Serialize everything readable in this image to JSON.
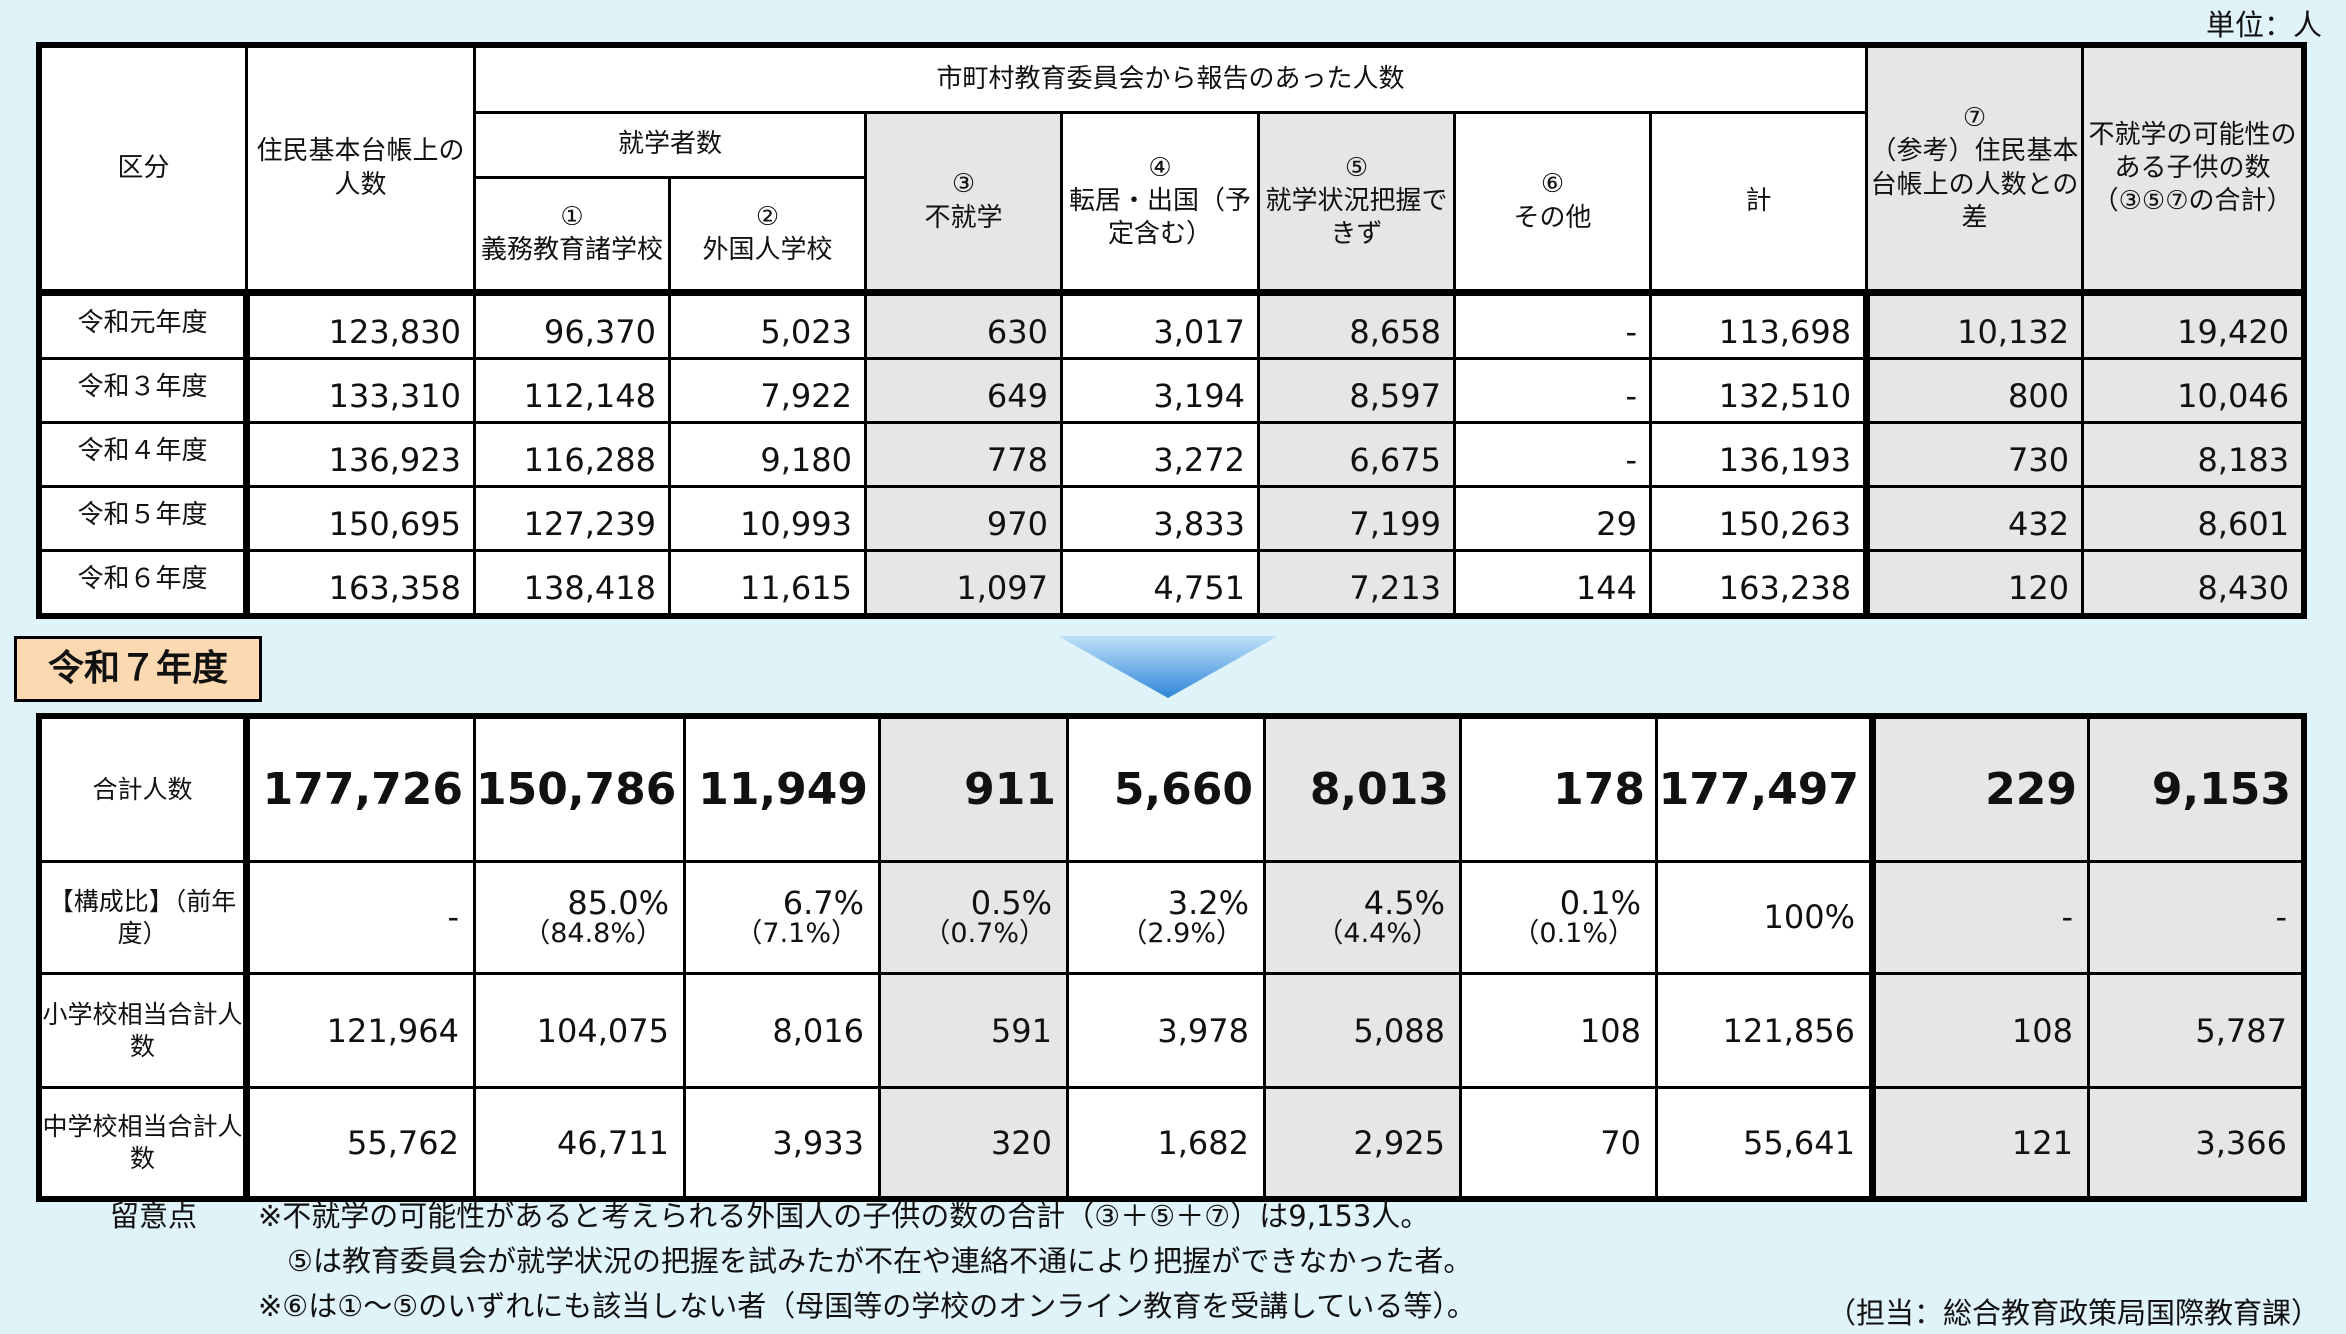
{
  "unit": "単位：人",
  "header": {
    "kubun": "区分",
    "juumin": "住民基本台帳上の人数",
    "shichoson": "市町村教育委員会から報告のあった人数",
    "shugaku": "就学者数",
    "c1_no": "①",
    "c1": "義務教育諸学校",
    "c2_no": "②",
    "c2": "外国人学校",
    "c3_no": "③",
    "c3": "不就学",
    "c4_no": "④",
    "c4": "転居・出国（予定含む）",
    "c5_no": "⑤",
    "c5": "就学状況把握できず",
    "c6_no": "⑥",
    "c6": "その他",
    "kei": "計",
    "c7_no": "⑦",
    "c7": "（参考）住民基本台帳上の人数との差",
    "c8": "不就学の可能性のある子供の数（③⑤⑦の合計）"
  },
  "past_rows": [
    {
      "label": "令和元年度",
      "values": [
        "123,830",
        "96,370",
        "5,023",
        "630",
        "3,017",
        "8,658",
        "-",
        "113,698",
        "10,132",
        "19,420"
      ]
    },
    {
      "label": "令和３年度",
      "values": [
        "133,310",
        "112,148",
        "7,922",
        "649",
        "3,194",
        "8,597",
        "-",
        "132,510",
        "800",
        "10,046"
      ]
    },
    {
      "label": "令和４年度",
      "values": [
        "136,923",
        "116,288",
        "9,180",
        "778",
        "3,272",
        "6,675",
        "-",
        "136,193",
        "730",
        "8,183"
      ]
    },
    {
      "label": "令和５年度",
      "values": [
        "150,695",
        "127,239",
        "10,993",
        "970",
        "3,833",
        "7,199",
        "29",
        "150,263",
        "432",
        "8,601"
      ]
    },
    {
      "label": "令和６年度",
      "values": [
        "163,358",
        "138,418",
        "11,615",
        "1,097",
        "4,751",
        "7,213",
        "144",
        "163,238",
        "120",
        "8,430"
      ]
    }
  ],
  "current_year_label": "令和７年度",
  "current": {
    "total": {
      "label": "合計人数",
      "values": [
        "177,726",
        "150,786",
        "11,949",
        "911",
        "5,660",
        "8,013",
        "178",
        "177,497",
        "229",
        "9,153"
      ]
    },
    "ratio": {
      "label": "【構成比】（前年度）",
      "values": [
        {
          "v": "-",
          "p": ""
        },
        {
          "v": "85.0%",
          "p": "（84.8%）"
        },
        {
          "v": "6.7%",
          "p": "（7.1%）"
        },
        {
          "v": "0.5%",
          "p": "（0.7%）"
        },
        {
          "v": "3.2%",
          "p": "（2.9%）"
        },
        {
          "v": "4.5%",
          "p": "（4.4%）"
        },
        {
          "v": "0.1%",
          "p": "（0.1%）"
        },
        {
          "v": "100%",
          "p": ""
        },
        {
          "v": "-",
          "p": ""
        },
        {
          "v": "-",
          "p": ""
        }
      ]
    },
    "elementary": {
      "label": "小学校相当合計人数",
      "values": [
        "121,964",
        "104,075",
        "8,016",
        "591",
        "3,978",
        "5,088",
        "108",
        "121,856",
        "108",
        "5,787"
      ]
    },
    "junior": {
      "label": "中学校相当合計人数",
      "values": [
        "55,762",
        "46,711",
        "3,933",
        "320",
        "1,682",
        "2,925",
        "70",
        "55,641",
        "121",
        "3,366"
      ]
    }
  },
  "notes": {
    "heading": "留意点",
    "lines": [
      "※不就学の可能性があると考えられる外国人の子供の数の合計（③＋⑤＋⑦）は9,153人。",
      "　⑤は教育委員会が就学状況の把握を試みたが不在や連絡不通により把握ができなかった者。",
      "※⑥は①～⑤のいずれにも該当しない者（母国等の学校のオンライン教育を受講している等）。"
    ]
  },
  "contact": "（担当：総合教育政策局国際教育課）"
}
